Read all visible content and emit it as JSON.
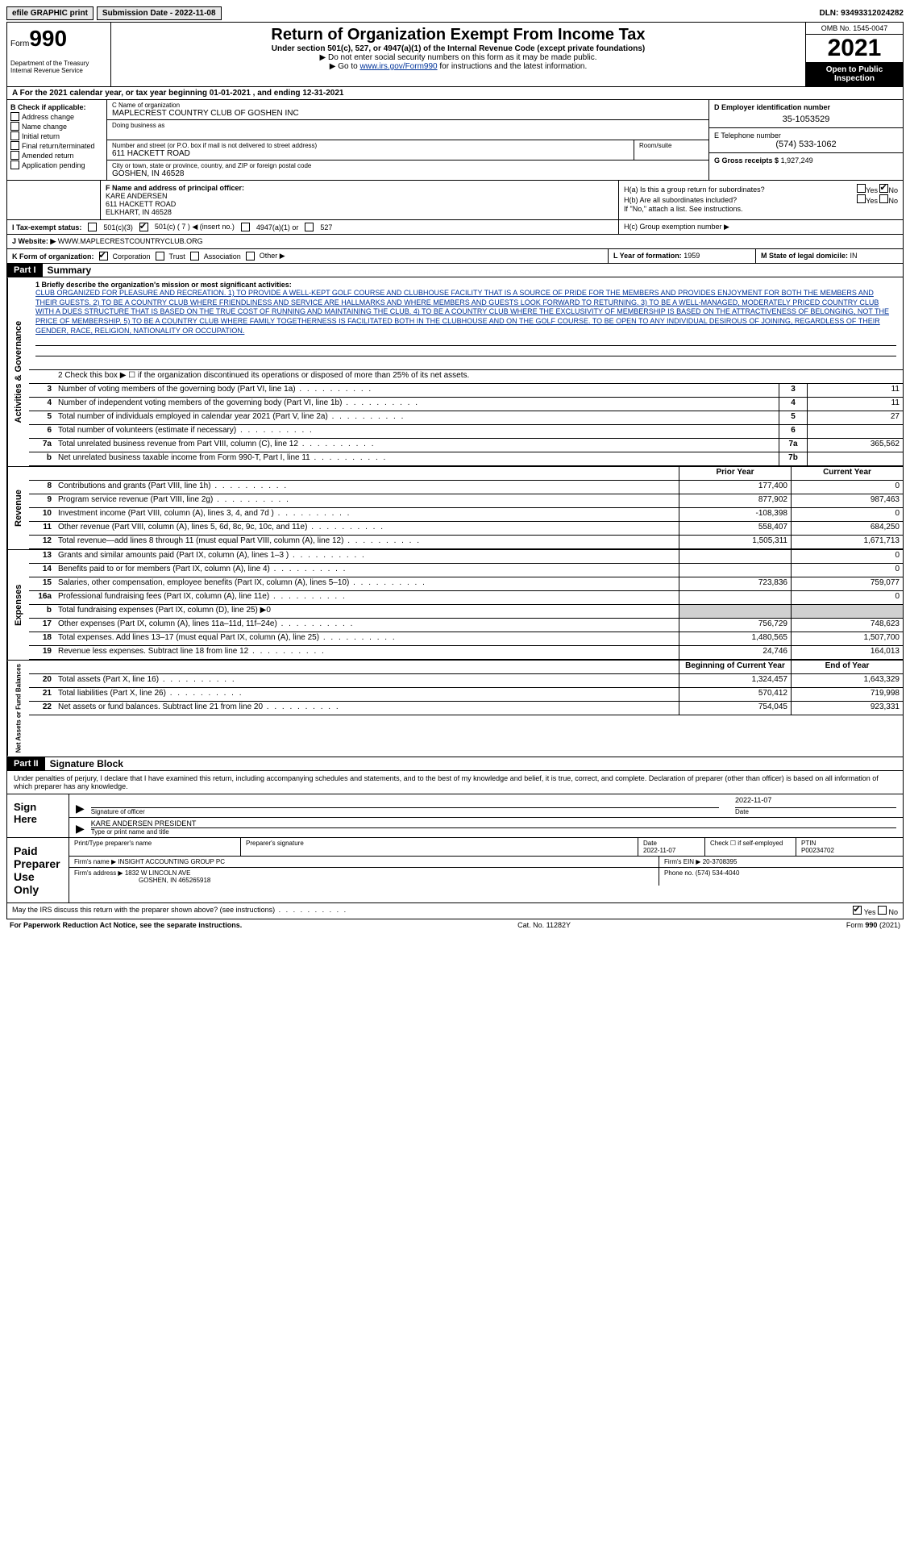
{
  "top": {
    "efile": "efile GRAPHIC print",
    "submission": "Submission Date - 2022-11-08",
    "dln": "DLN: 93493312024282"
  },
  "header": {
    "form": "Form",
    "form_num": "990",
    "dept": "Department of the Treasury Internal Revenue Service",
    "title": "Return of Organization Exempt From Income Tax",
    "sub": "Under section 501(c), 527, or 4947(a)(1) of the Internal Revenue Code (except private foundations)",
    "note1": "▶ Do not enter social security numbers on this form as it may be made public.",
    "note2_pre": "▶ Go to ",
    "note2_link": "www.irs.gov/Form990",
    "note2_post": " for instructions and the latest information.",
    "omb": "OMB No. 1545-0047",
    "year": "2021",
    "open": "Open to Public Inspection"
  },
  "line_a": "A For the 2021 calendar year, or tax year beginning 01-01-2021   , and ending 12-31-2021",
  "section_b": {
    "label": "B Check if applicable:",
    "items": [
      "Address change",
      "Name change",
      "Initial return",
      "Final return/terminated",
      "Amended return",
      "Application pending"
    ]
  },
  "section_c": {
    "name_label": "C Name of organization",
    "name": "MAPLECREST COUNTRY CLUB OF GOSHEN INC",
    "dba_label": "Doing business as",
    "addr_label": "Number and street (or P.O. box if mail is not delivered to street address)",
    "addr": "611 HACKETT ROAD",
    "room_label": "Room/suite",
    "city_label": "City or town, state or province, country, and ZIP or foreign postal code",
    "city": "GOSHEN, IN  46528"
  },
  "section_d": {
    "ein_label": "D Employer identification number",
    "ein": "35-1053529",
    "phone_label": "E Telephone number",
    "phone": "(574) 533-1062",
    "gross_label": "G Gross receipts $",
    "gross": "1,927,249"
  },
  "section_f": {
    "label": "F  Name and address of principal officer:",
    "name": "KARE ANDERSEN",
    "addr1": "611 HACKETT ROAD",
    "addr2": "ELKHART, IN  46528"
  },
  "section_h": {
    "ha": "H(a)  Is this a group return for subordinates?",
    "hb": "H(b)  Are all subordinates included?",
    "hb_note": "If \"No,\" attach a list. See instructions.",
    "hc": "H(c)  Group exemption number ▶"
  },
  "section_i": {
    "label": "I   Tax-exempt status:",
    "opts": [
      "501(c)(3)",
      "501(c) ( 7 ) ◀ (insert no.)",
      "4947(a)(1) or",
      "527"
    ]
  },
  "section_j": {
    "label": "J   Website: ▶",
    "val": "WWW.MAPLECRESTCOUNTRYCLUB.ORG"
  },
  "section_k": {
    "label": "K Form of organization:",
    "opts": [
      "Corporation",
      "Trust",
      "Association",
      "Other ▶"
    ]
  },
  "section_l": {
    "label": "L Year of formation:",
    "val": "1959"
  },
  "section_m": {
    "label": "M State of legal domicile:",
    "val": "IN"
  },
  "part1": {
    "label": "Part I",
    "title": "Summary",
    "line1_label": "1   Briefly describe the organization's mission or most significant activities:",
    "mission": "CLUB ORGANIZED FOR PLEASURE AND RECREATION. 1) TO PROVIDE A WELL-KEPT GOLF COURSE AND CLUBHOUSE FACILITY THAT IS A SOURCE OF PRIDE FOR THE MEMBERS AND PROVIDES ENJOYMENT FOR BOTH THE MEMBERS AND THEIR GUESTS. 2) TO BE A COUNTRY CLUB WHERE FRIENDLINESS AND SERVICE ARE HALLMARKS AND WHERE MEMBERS AND GUESTS LOOK FORWARD TO RETURNING. 3) TO BE A WELL-MANAGED, MODERATELY PRICED COUNTRY CLUB WITH A DUES STRUCTURE THAT IS BASED ON THE TRUE COST OF RUNNING AND MAINTAINING THE CLUB. 4) TO BE A COUNTRY CLUB WHERE THE EXCLUSIVITY OF MEMBERSHIP IS BASED ON THE ATTRACTIVENESS OF BELONGING, NOT THE PRICE OF MEMBERSHIP. 5) TO BE A COUNTRY CLUB WHERE FAMILY TOGETHERNESS IS FACILITATED BOTH IN THE CLUBHOUSE AND ON THE GOLF COURSE. TO BE OPEN TO ANY INDIVIDUAL DESIROUS OF JOINING, REGARDLESS OF THEIR GENDER, RACE, RELIGION, NATIONALITY OR OCCUPATION.",
    "line2": "2   Check this box ▶ ☐ if the organization discontinued its operations or disposed of more than 25% of its net assets."
  },
  "governance_rows": [
    {
      "n": "3",
      "desc": "Number of voting members of the governing body (Part VI, line 1a)",
      "box": "3",
      "val": "11"
    },
    {
      "n": "4",
      "desc": "Number of independent voting members of the governing body (Part VI, line 1b)",
      "box": "4",
      "val": "11"
    },
    {
      "n": "5",
      "desc": "Total number of individuals employed in calendar year 2021 (Part V, line 2a)",
      "box": "5",
      "val": "27"
    },
    {
      "n": "6",
      "desc": "Total number of volunteers (estimate if necessary)",
      "box": "6",
      "val": ""
    },
    {
      "n": "7a",
      "desc": "Total unrelated business revenue from Part VIII, column (C), line 12",
      "box": "7a",
      "val": "365,562"
    },
    {
      "n": "b",
      "desc": "Net unrelated business taxable income from Form 990-T, Part I, line 11",
      "box": "7b",
      "val": ""
    }
  ],
  "revenue_rows": [
    {
      "n": "8",
      "desc": "Contributions and grants (Part VIII, line 1h)",
      "prior": "177,400",
      "curr": "0"
    },
    {
      "n": "9",
      "desc": "Program service revenue (Part VIII, line 2g)",
      "prior": "877,902",
      "curr": "987,463"
    },
    {
      "n": "10",
      "desc": "Investment income (Part VIII, column (A), lines 3, 4, and 7d )",
      "prior": "-108,398",
      "curr": "0"
    },
    {
      "n": "11",
      "desc": "Other revenue (Part VIII, column (A), lines 5, 6d, 8c, 9c, 10c, and 11e)",
      "prior": "558,407",
      "curr": "684,250"
    },
    {
      "n": "12",
      "desc": "Total revenue—add lines 8 through 11 (must equal Part VIII, column (A), line 12)",
      "prior": "1,505,311",
      "curr": "1,671,713"
    }
  ],
  "expense_rows": [
    {
      "n": "13",
      "desc": "Grants and similar amounts paid (Part IX, column (A), lines 1–3 )",
      "prior": "",
      "curr": "0"
    },
    {
      "n": "14",
      "desc": "Benefits paid to or for members (Part IX, column (A), line 4)",
      "prior": "",
      "curr": "0"
    },
    {
      "n": "15",
      "desc": "Salaries, other compensation, employee benefits (Part IX, column (A), lines 5–10)",
      "prior": "723,836",
      "curr": "759,077"
    },
    {
      "n": "16a",
      "desc": "Professional fundraising fees (Part IX, column (A), line 11e)",
      "prior": "",
      "curr": "0"
    },
    {
      "n": "b",
      "desc": "Total fundraising expenses (Part IX, column (D), line 25) ▶0",
      "prior": "SHADED",
      "curr": "SHADED"
    },
    {
      "n": "17",
      "desc": "Other expenses (Part IX, column (A), lines 11a–11d, 11f–24e)",
      "prior": "756,729",
      "curr": "748,623"
    },
    {
      "n": "18",
      "desc": "Total expenses. Add lines 13–17 (must equal Part IX, column (A), line 25)",
      "prior": "1,480,565",
      "curr": "1,507,700"
    },
    {
      "n": "19",
      "desc": "Revenue less expenses. Subtract line 18 from line 12",
      "prior": "24,746",
      "curr": "164,013"
    }
  ],
  "netassets_rows": [
    {
      "n": "20",
      "desc": "Total assets (Part X, line 16)",
      "prior": "1,324,457",
      "curr": "1,643,329"
    },
    {
      "n": "21",
      "desc": "Total liabilities (Part X, line 26)",
      "prior": "570,412",
      "curr": "719,998"
    },
    {
      "n": "22",
      "desc": "Net assets or fund balances. Subtract line 21 from line 20",
      "prior": "754,045",
      "curr": "923,331"
    }
  ],
  "col_headers": {
    "prior": "Prior Year",
    "current": "Current Year",
    "begin": "Beginning of Current Year",
    "end": "End of Year"
  },
  "side_labels": {
    "gov": "Activities & Governance",
    "rev": "Revenue",
    "exp": "Expenses",
    "net": "Net Assets or Fund Balances"
  },
  "part2": {
    "label": "Part II",
    "title": "Signature Block",
    "intro": "Under penalties of perjury, I declare that I have examined this return, including accompanying schedules and statements, and to the best of my knowledge and belief, it is true, correct, and complete. Declaration of preparer (other than officer) is based on all information of which preparer has any knowledge.",
    "sign_here": "Sign Here",
    "sig_officer": "Signature of officer",
    "sig_date": "2022-11-07",
    "date_label": "Date",
    "officer_name": "KARE ANDERSEN  PRESIDENT",
    "officer_label": "Type or print name and title",
    "paid": "Paid Preparer Use Only",
    "prep_name_label": "Print/Type preparer's name",
    "prep_sig_label": "Preparer's signature",
    "prep_date_label": "Date",
    "prep_date": "2022-11-07",
    "self_emp": "Check ☐ if self-employed",
    "ptin_label": "PTIN",
    "ptin": "P00234702",
    "firm_name_label": "Firm's name    ▶",
    "firm_name": "INSIGHT ACCOUNTING GROUP PC",
    "firm_ein_label": "Firm's EIN ▶",
    "firm_ein": "20-3708395",
    "firm_addr_label": "Firm's address ▶",
    "firm_addr": "1832 W LINCOLN AVE",
    "firm_city": "GOSHEN, IN  465265918",
    "firm_phone_label": "Phone no.",
    "firm_phone": "(574) 534-4040",
    "discuss": "May the IRS discuss this return with the preparer shown above? (see instructions)",
    "yes": "Yes",
    "no": "No"
  },
  "footer": {
    "left": "For Paperwork Reduction Act Notice, see the separate instructions.",
    "mid": "Cat. No. 11282Y",
    "right": "Form 990 (2021)"
  }
}
